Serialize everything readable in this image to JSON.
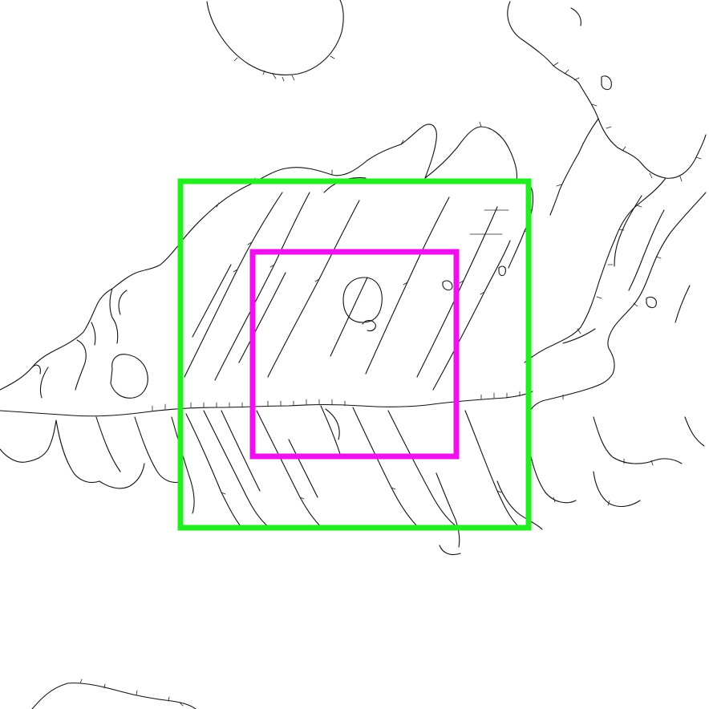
{
  "colors": {
    "background": "#ffffff",
    "edge_lines": "#111111",
    "outer_box": "#22ee22",
    "inner_box": "#ee11ee"
  },
  "overlays": [
    {
      "name": "outer-box",
      "color": "#22ee22"
    },
    {
      "name": "inner-box",
      "color": "#ee11ee"
    }
  ]
}
